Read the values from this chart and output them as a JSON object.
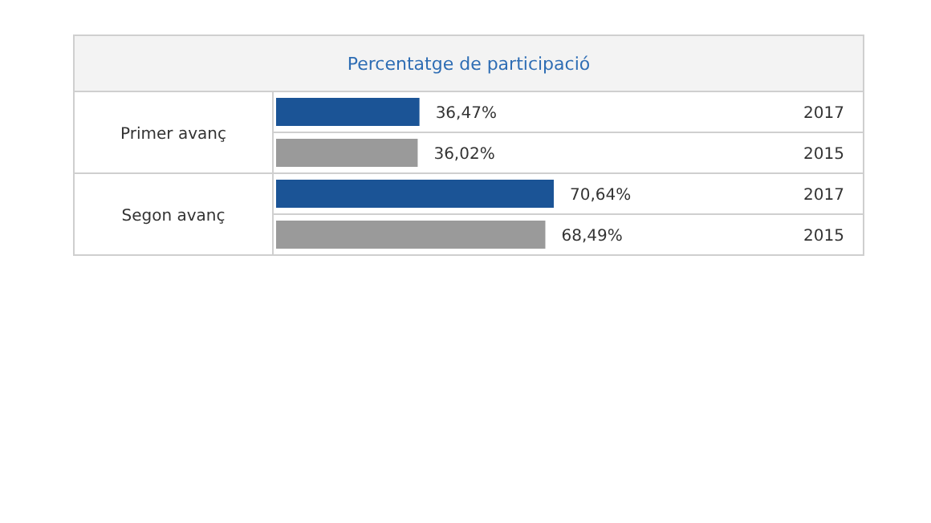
{
  "chart_data": {
    "type": "bar",
    "orientation": "horizontal",
    "title": "Percentatge de participació",
    "categories": [
      "Primer avanç",
      "Segon avanç"
    ],
    "series": [
      {
        "name": "2017",
        "color": "#1b5496",
        "values": [
          36.47,
          70.64
        ],
        "value_labels": [
          "36,47%",
          "70,64%"
        ]
      },
      {
        "name": "2015",
        "color": "#9a9a9a",
        "values": [
          36.02,
          68.49
        ],
        "value_labels": [
          "36,02%",
          "68,49%"
        ]
      }
    ],
    "grid": "y"
  }
}
